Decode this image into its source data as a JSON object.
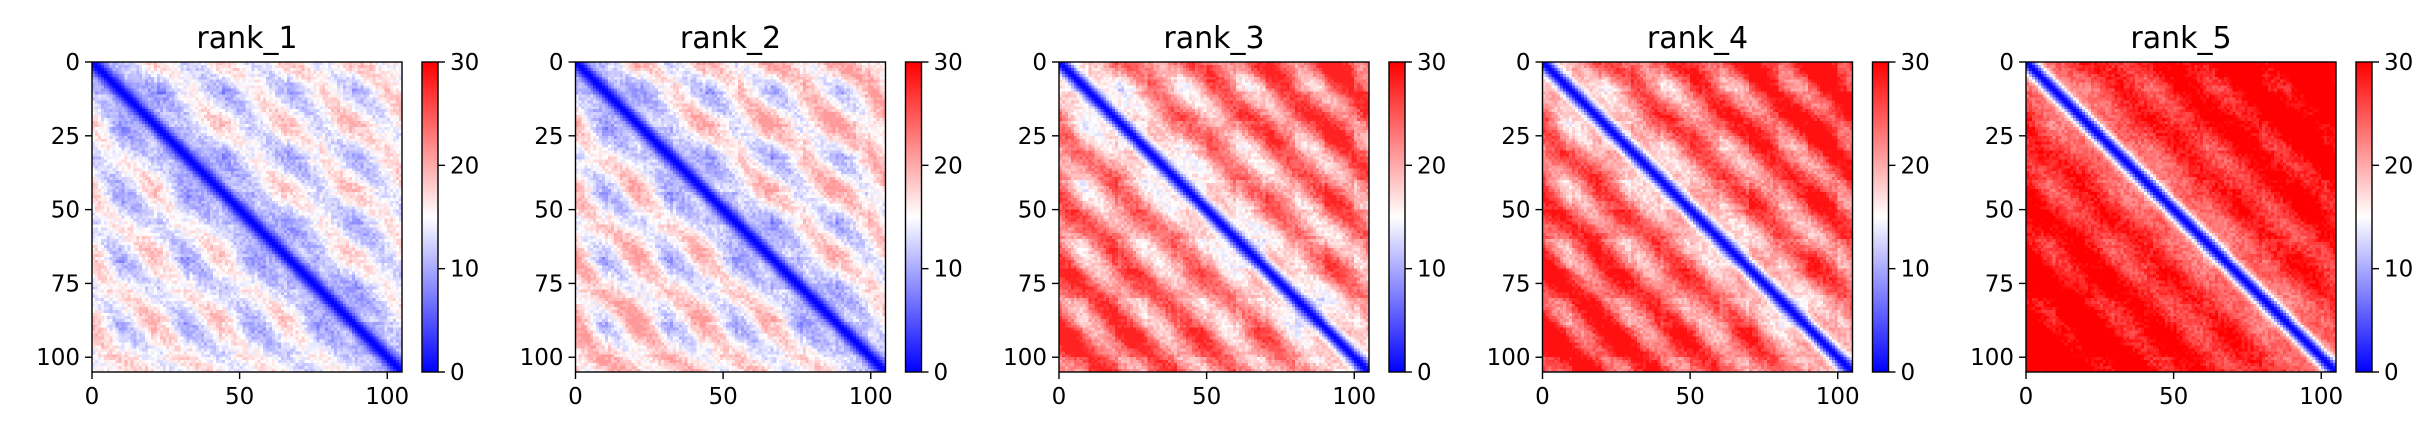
{
  "figure": {
    "colormap": "bwr",
    "colors": {
      "low": "#0000ff",
      "mid": "#ffffff",
      "high": "#ff0000"
    }
  },
  "chart_data": [
    {
      "type": "heatmap",
      "title": "rank_1",
      "size": 105,
      "xlim": [
        0,
        105
      ],
      "ylim": [
        105,
        0
      ],
      "xticks": [
        0,
        50,
        100
      ],
      "yticks": [
        0,
        25,
        50,
        75,
        100
      ],
      "colorbar": {
        "range": [
          0,
          30
        ],
        "ticks": [
          0,
          10,
          20,
          30
        ]
      },
      "params": {
        "period": 22.5,
        "block": 11,
        "base": 13.5,
        "amp": 5.5,
        "slope": 0.03,
        "diag_width": 3.2,
        "cap": 20
      }
    },
    {
      "type": "heatmap",
      "title": "rank_2",
      "size": 105,
      "xlim": [
        0,
        105
      ],
      "ylim": [
        105,
        0
      ],
      "xticks": [
        0,
        50,
        100
      ],
      "yticks": [
        0,
        25,
        50,
        75,
        100
      ],
      "colorbar": {
        "range": [
          0,
          30
        ],
        "ticks": [
          0,
          10,
          20,
          30
        ]
      },
      "params": {
        "period": 22.5,
        "block": 11,
        "base": 14.5,
        "amp": 6.5,
        "slope": 0.04,
        "diag_width": 3.2,
        "cap": 21
      }
    },
    {
      "type": "heatmap",
      "title": "rank_3",
      "size": 105,
      "xlim": [
        0,
        105
      ],
      "ylim": [
        105,
        0
      ],
      "xticks": [
        0,
        50,
        100
      ],
      "yticks": [
        0,
        25,
        50,
        75,
        100
      ],
      "colorbar": {
        "range": [
          0,
          30
        ],
        "ticks": [
          0,
          10,
          20,
          30
        ]
      },
      "params": {
        "period": 22.5,
        "block": 10,
        "base": 19.5,
        "amp": 7,
        "slope": 0.07,
        "diag_width": 3.0,
        "cap": 28
      }
    },
    {
      "type": "heatmap",
      "title": "rank_4",
      "size": 105,
      "xlim": [
        0,
        105
      ],
      "ylim": [
        105,
        0
      ],
      "xticks": [
        0,
        50,
        100
      ],
      "yticks": [
        0,
        25,
        50,
        75,
        100
      ],
      "colorbar": {
        "range": [
          0,
          30
        ],
        "ticks": [
          0,
          10,
          20,
          30
        ]
      },
      "params": {
        "period": 22.5,
        "block": 10,
        "base": 21.5,
        "amp": 7,
        "slope": 0.08,
        "diag_width": 3.0,
        "cap": 29
      }
    },
    {
      "type": "heatmap",
      "title": "rank_5",
      "size": 105,
      "xlim": [
        0,
        105
      ],
      "ylim": [
        105,
        0
      ],
      "xticks": [
        0,
        50,
        100
      ],
      "yticks": [
        0,
        25,
        50,
        75,
        100
      ],
      "colorbar": {
        "range": [
          0,
          30
        ],
        "ticks": [
          0,
          10,
          20,
          30
        ]
      },
      "params": {
        "period": 22.5,
        "block": 10,
        "base": 25,
        "amp": 4,
        "slope": 0.09,
        "diag_width": 3.0,
        "cap": 30
      }
    }
  ]
}
